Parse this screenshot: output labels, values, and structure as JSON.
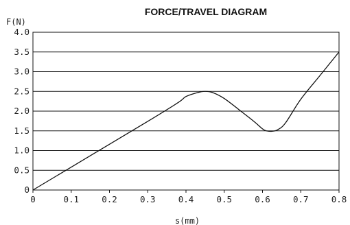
{
  "chart_data": {
    "type": "line",
    "title": "FORCE/TRAVEL DIAGRAM",
    "ylabel": "F(N)",
    "xlabel": "s(mm)",
    "xlim": [
      0,
      0.8
    ],
    "ylim": [
      0,
      4.0
    ],
    "x_ticks": [
      "0",
      "0.1",
      "0.2",
      "0.3",
      "0.4",
      "0.5",
      "0.6",
      "0.7",
      "0.8"
    ],
    "y_ticks": [
      "0",
      "0.5",
      "1.0",
      "1.5",
      "2.0",
      "2.5",
      "3.0",
      "3.5",
      "4.0"
    ],
    "grid": "horizontal",
    "series": [
      {
        "x": [
          0,
          0.1,
          0.2,
          0.3,
          0.38,
          0.4,
          0.43,
          0.45,
          0.47,
          0.5,
          0.55,
          0.58,
          0.6,
          0.61,
          0.625,
          0.64,
          0.66,
          0.7,
          0.75,
          0.8
        ],
        "y": [
          0,
          0.58,
          1.16,
          1.74,
          2.22,
          2.37,
          2.47,
          2.5,
          2.47,
          2.32,
          1.95,
          1.72,
          1.55,
          1.5,
          1.49,
          1.53,
          1.7,
          2.3,
          2.9,
          3.5
        ]
      }
    ]
  }
}
